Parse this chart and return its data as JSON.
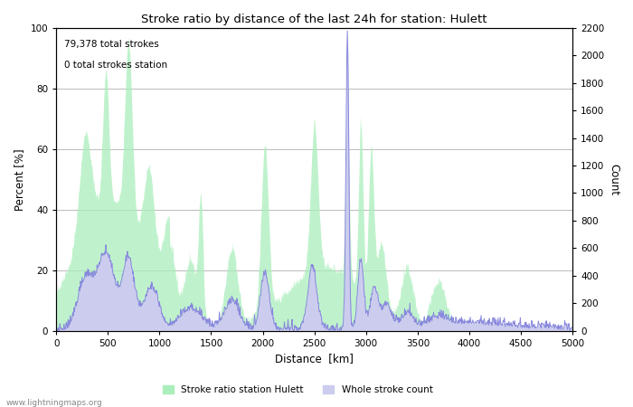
{
  "title": "Stroke ratio by distance of the last 24h for station: Hulett",
  "xlabel": "Distance  [km]",
  "ylabel_left": "Percent [%]",
  "ylabel_right": "Count",
  "annotation_line1": "79,378 total strokes",
  "annotation_line2": "0 total strokes station",
  "xlim": [
    0,
    5000
  ],
  "ylim_left": [
    0,
    100
  ],
  "ylim_right": [
    0,
    2200
  ],
  "xticks": [
    0,
    500,
    1000,
    1500,
    2000,
    2500,
    3000,
    3500,
    4000,
    4500,
    5000
  ],
  "yticks_left": [
    0,
    20,
    40,
    60,
    80,
    100
  ],
  "yticks_right": [
    0,
    200,
    400,
    600,
    800,
    1000,
    1200,
    1400,
    1600,
    1800,
    2000,
    2200
  ],
  "legend_label_green": "Stroke ratio station Hulett",
  "legend_label_blue": "Whole stroke count",
  "color_blue_line": "#8888dd",
  "color_blue_fill": "#ccccee",
  "color_green_fill": "#aaeebb",
  "watermark": "www.lightningmaps.org",
  "background_color": "#ffffff",
  "grid_color": "#b0b0b0"
}
